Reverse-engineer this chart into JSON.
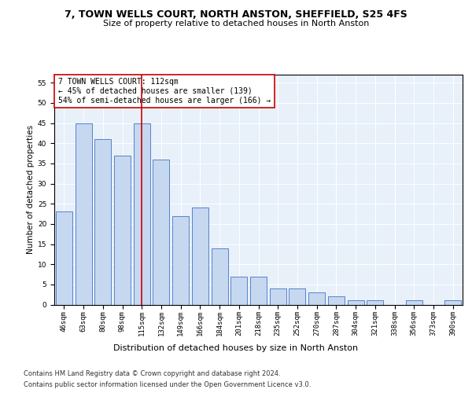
{
  "title": "7, TOWN WELLS COURT, NORTH ANSTON, SHEFFIELD, S25 4FS",
  "subtitle": "Size of property relative to detached houses in North Anston",
  "xlabel": "Distribution of detached houses by size in North Anston",
  "ylabel": "Number of detached properties",
  "categories": [
    "46sqm",
    "63sqm",
    "80sqm",
    "98sqm",
    "115sqm",
    "132sqm",
    "149sqm",
    "166sqm",
    "184sqm",
    "201sqm",
    "218sqm",
    "235sqm",
    "252sqm",
    "270sqm",
    "287sqm",
    "304sqm",
    "321sqm",
    "338sqm",
    "356sqm",
    "373sqm",
    "390sqm"
  ],
  "values": [
    23,
    45,
    41,
    37,
    45,
    36,
    22,
    24,
    14,
    7,
    7,
    4,
    4,
    3,
    2,
    1,
    1,
    0,
    1,
    0,
    1
  ],
  "bar_color": "#c5d8f0",
  "bar_edge_color": "#4472c4",
  "vline_x": 4,
  "vline_color": "#cc0000",
  "annotation_text": "7 TOWN WELLS COURT: 112sqm\n← 45% of detached houses are smaller (139)\n54% of semi-detached houses are larger (166) →",
  "annotation_box_edge_color": "#cc0000",
  "annotation_box_face_color": "#ffffff",
  "ylim": [
    0,
    57
  ],
  "yticks": [
    0,
    5,
    10,
    15,
    20,
    25,
    30,
    35,
    40,
    45,
    50,
    55
  ],
  "background_color": "#e8f0fa",
  "footer_line1": "Contains HM Land Registry data © Crown copyright and database right 2024.",
  "footer_line2": "Contains public sector information licensed under the Open Government Licence v3.0.",
  "title_fontsize": 9,
  "subtitle_fontsize": 8,
  "xlabel_fontsize": 8,
  "ylabel_fontsize": 7.5,
  "tick_fontsize": 6.5,
  "annotation_fontsize": 7,
  "footer_fontsize": 6
}
